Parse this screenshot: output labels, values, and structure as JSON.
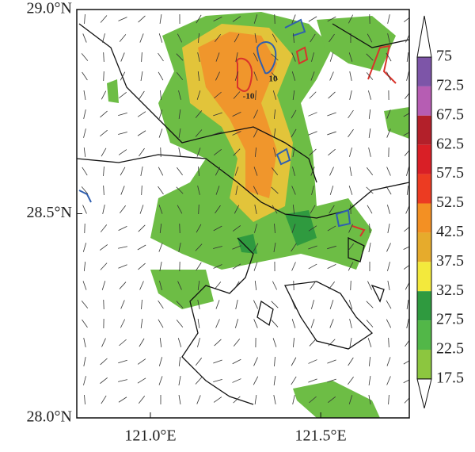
{
  "chart_data": {
    "type": "map",
    "xlim": [
      120.784,
      121.76
    ],
    "ylim": [
      28.0,
      29.0
    ],
    "xticks": [
      {
        "value": 121.0,
        "label": "121.0°E"
      },
      {
        "value": 121.5,
        "label": "121.5°E"
      }
    ],
    "yticks": [
      {
        "value": 28.0,
        "label": "28.0°N"
      },
      {
        "value": 28.5,
        "label": "28.5°N"
      },
      {
        "value": 29.0,
        "label": "29.0°N"
      }
    ],
    "contour_labels": [
      "10",
      "-10"
    ],
    "colorbar": {
      "levels": [
        75,
        72.5,
        67.5,
        62.5,
        57.5,
        52.5,
        42.5,
        37.5,
        32.5,
        27.5,
        22.5,
        17.5
      ],
      "colors": [
        "#7d55a8",
        "#b65db3",
        "#b3202a",
        "#d91f26",
        "#ec3b22",
        "#f39023",
        "#e6ab2c",
        "#f3e93c",
        "#2f9a3f",
        "#52b748",
        "#8cc63f"
      ]
    }
  }
}
